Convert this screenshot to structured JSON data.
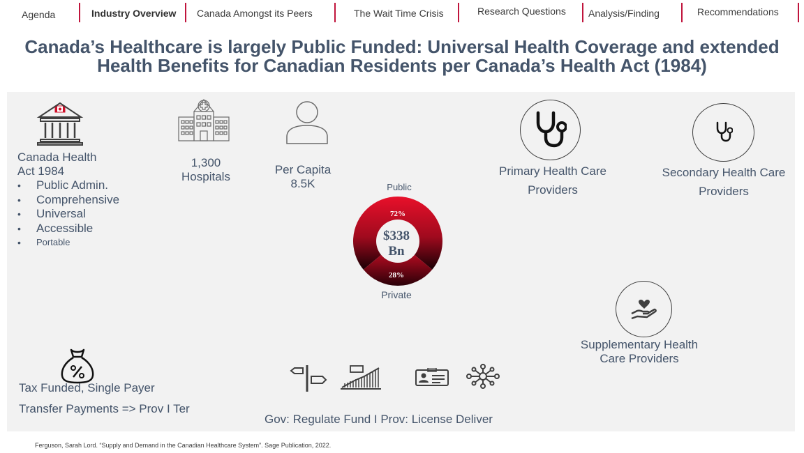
{
  "nav": {
    "items": [
      {
        "label": "Agenda",
        "active": false
      },
      {
        "label": "Industry Overview",
        "active": true
      },
      {
        "label": "Canada Amongst its Peers",
        "active": false
      },
      {
        "label": "The Wait Time Crisis",
        "active": false
      },
      {
        "label": "Research Questions",
        "active": false
      },
      {
        "label": "Analysis/Finding",
        "active": false
      },
      {
        "label": "Recommendations",
        "active": false
      }
    ],
    "separator_color": "#c0143c"
  },
  "title": {
    "line1": "Canada’s Healthcare is largely Public Funded: Universal Health Coverage and extended",
    "line2": "Health Benefits for Canadian  Residents per Canada’s Health Act (1984)"
  },
  "health_act": {
    "line1": "Canada  Health",
    "line2": "Act 1984",
    "principles": [
      "Public Admin.",
      "Comprehensive",
      "Universal",
      "Accessible",
      "Portable"
    ]
  },
  "hospitals": {
    "count": "1,300",
    "label": "Hospitals"
  },
  "per_capita": {
    "label": "Per Capita",
    "value": "8.5K"
  },
  "funding": {
    "total_line1": "$338",
    "total_line2": "Bn",
    "public_label": "Public",
    "private_label": "Private",
    "public_pct_label": "72%",
    "private_pct_label": "28%",
    "public_share": 0.72,
    "private_share": 0.28,
    "public_color": "#e0102a",
    "private_color": "#1a0005"
  },
  "providers": {
    "primary_line1": "Primary Health Care",
    "primary_line2": "Providers",
    "secondary_line1": "Secondary Health Care",
    "secondary_line2": "Providers",
    "supplementary_line1": "Supplementary Health",
    "supplementary_line2": "Care Providers"
  },
  "financing": {
    "line1": "Tax Funded, Single Payer",
    "line2": "Transfer Payments => Prov I Ter"
  },
  "governance": {
    "label": "Gov: Regulate Fund I Prov: License  Deliver"
  },
  "source": "Ferguson, Sarah Lord. “Supply and Demand in the Canadian Healthcare System”. Sage Publication, 2022.",
  "icons": {
    "health_act": "government-building-flag-icon",
    "hospitals": "hospital-building-icon",
    "per_capita": "person-icon",
    "primary": "stethoscope-icon",
    "secondary": "stethoscope-icon",
    "supplementary": "hand-heart-icon",
    "tax": "money-bag-percent-icon",
    "gov": [
      "signpost-icon",
      "growth-chart-icon",
      "license-card-icon",
      "network-icon"
    ]
  }
}
